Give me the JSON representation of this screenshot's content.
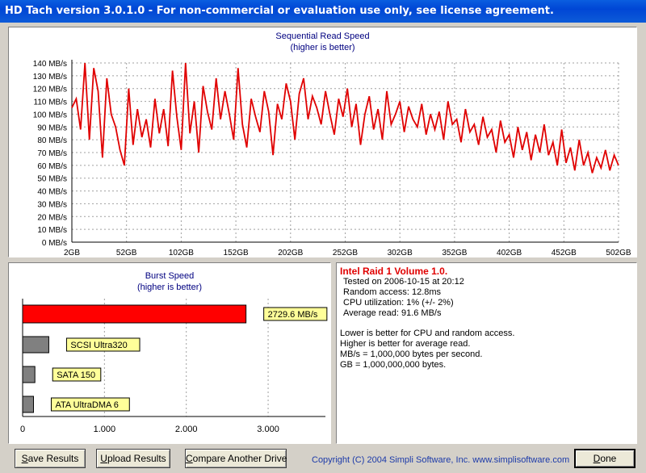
{
  "window": {
    "title": "HD Tach version 3.0.1.0  - For non-commercial or evaluation use only, see license agreement."
  },
  "seq_chart": {
    "title": "Sequential Read Speed",
    "subtitle": "(higher is better)",
    "line_color": "#e00000"
  },
  "burst_chart": {
    "title": "Burst Speed",
    "subtitle": "(higher is better)"
  },
  "info": {
    "drive_name": "Intel Raid 1 Volume 1.0.",
    "tested": "Tested on 2006-10-15 at 20:12",
    "random_access": "Random access: 12.8ms",
    "cpu": "CPU utilization: 1% (+/- 2%)",
    "average": "Average read: 91.6 MB/s",
    "notes": [
      "Lower is better for CPU and random access.",
      "Higher is better for average read.",
      "MB/s = 1,000,000 bytes per second.",
      "GB = 1,000,000,000 bytes."
    ]
  },
  "buttons": {
    "save_u": "S",
    "save_rest": "ave Results",
    "upload_u": "U",
    "upload_rest": "pload Results",
    "compare_u": "C",
    "compare_rest": "ompare Another Drive",
    "done_u": "D",
    "done_rest": "one"
  },
  "copyright": "Copyright (C) 2004 Simpli Software, Inc. www.simplisoftware.com",
  "chart_data": [
    {
      "type": "line",
      "title": "Sequential Read Speed",
      "subtitle": "(higher is better)",
      "x_ticks": [
        "2GB",
        "52GB",
        "102GB",
        "152GB",
        "202GB",
        "252GB",
        "302GB",
        "352GB",
        "402GB",
        "452GB",
        "502GB"
      ],
      "y_ticks": [
        "0 MB/s",
        "10 MB/s",
        "20 MB/s",
        "30 MB/s",
        "40 MB/s",
        "50 MB/s",
        "60 MB/s",
        "70 MB/s",
        "80 MB/s",
        "90 MB/s",
        "100 MB/s",
        "110 MB/s",
        "120 MB/s",
        "130 MB/s",
        "140 MB/s"
      ],
      "xlim": [
        2,
        502
      ],
      "ylim": [
        0,
        140
      ],
      "grid": true,
      "series": [
        {
          "x": [
            2,
            6,
            10,
            14,
            18,
            22,
            26,
            30,
            34,
            38,
            42,
            46,
            50,
            54,
            58,
            62,
            66,
            70,
            74,
            78,
            82,
            86,
            90,
            94,
            98,
            102,
            106,
            110,
            114,
            118,
            122,
            126,
            130,
            134,
            138,
            142,
            146,
            150,
            154,
            158,
            162,
            166,
            170,
            174,
            178,
            182,
            186,
            190,
            194,
            198,
            202,
            206,
            210,
            214,
            218,
            222,
            226,
            230,
            234,
            238,
            242,
            246,
            250,
            254,
            258,
            262,
            266,
            270,
            274,
            278,
            282,
            286,
            290,
            294,
            298,
            302,
            306,
            310,
            314,
            318,
            322,
            326,
            330,
            334,
            338,
            342,
            346,
            350,
            354,
            358,
            362,
            366,
            370,
            374,
            378,
            382,
            386,
            390,
            394,
            398,
            402,
            406,
            410,
            414,
            418,
            422,
            426,
            430,
            434,
            438,
            442,
            446,
            450,
            454,
            458,
            462,
            466,
            470,
            474,
            478,
            482,
            486,
            490,
            494,
            498,
            502
          ],
          "y": [
            105,
            112,
            88,
            140,
            80,
            136,
            118,
            66,
            128,
            100,
            90,
            72,
            60,
            120,
            76,
            104,
            82,
            96,
            74,
            112,
            85,
            104,
            75,
            134,
            98,
            72,
            140,
            85,
            110,
            70,
            122,
            102,
            88,
            128,
            96,
            118,
            100,
            80,
            136,
            92,
            74,
            112,
            98,
            86,
            118,
            102,
            68,
            108,
            96,
            124,
            110,
            80,
            116,
            128,
            96,
            114,
            105,
            92,
            118,
            100,
            84,
            112,
            98,
            120,
            90,
            108,
            76,
            100,
            114,
            88,
            104,
            80,
            118,
            92,
            100,
            110,
            86,
            106,
            96,
            90,
            108,
            84,
            100,
            88,
            102,
            80,
            110,
            92,
            96,
            78,
            104,
            86,
            92,
            76,
            98,
            82,
            88,
            70,
            95,
            78,
            84,
            66,
            90,
            72,
            86,
            64,
            84,
            70,
            92,
            68,
            78,
            60,
            88,
            62,
            74,
            56,
            80,
            60,
            70,
            54,
            66,
            58,
            72,
            56,
            68,
            60
          ]
        }
      ]
    },
    {
      "type": "bar",
      "title": "Burst Speed",
      "subtitle": "(higher is better)",
      "orientation": "horizontal",
      "categories": [
        "2729.6 MB/s",
        "SCSI Ultra320",
        "SATA 150",
        "ATA UltraDMA 6"
      ],
      "values": [
        2729.6,
        320,
        150,
        133
      ],
      "colors": [
        "#ff0000",
        "#808080",
        "#808080",
        "#808080"
      ],
      "x_ticks": [
        "0",
        "1.000",
        "2.000",
        "3.000"
      ],
      "xlim": [
        0,
        3700
      ],
      "grid": true
    }
  ]
}
